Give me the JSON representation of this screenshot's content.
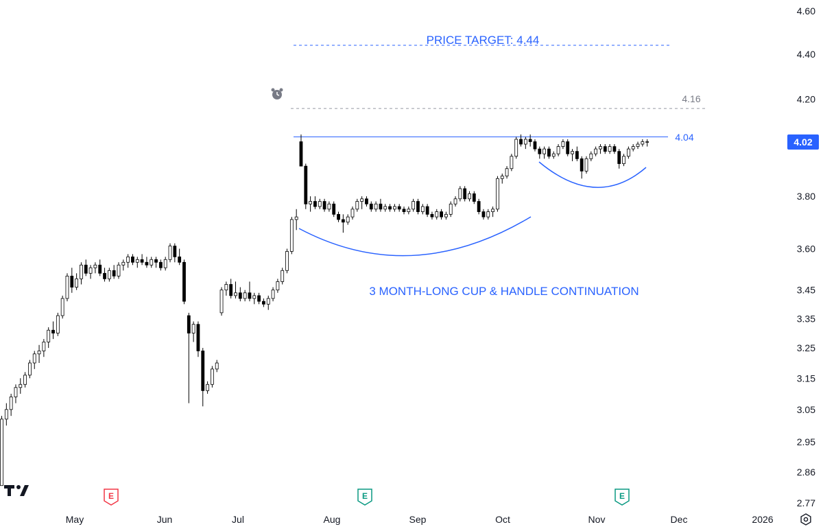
{
  "chart_data": {
    "type": "candlestick",
    "y_scale": "log",
    "ylim": [
      2.77,
      4.6
    ],
    "yticks": [
      "4.60",
      "4.40",
      "4.20",
      "4.02",
      "3.80",
      "3.60",
      "3.45",
      "3.35",
      "3.25",
      "3.15",
      "3.05",
      "2.95",
      "2.86",
      "2.77"
    ],
    "xticks": [
      "May",
      "Jun",
      "Jul",
      "Aug",
      "Sep",
      "Oct",
      "Nov",
      "Dec",
      "2026"
    ],
    "last_price": "4.02",
    "annotations": {
      "price_target_label": "PRICE TARGET: 4.44",
      "pattern_label": "3 MONTH-LONG CUP & HANDLE CONTINUATION",
      "resistance_label": "4.04",
      "level_416_label": "4.16"
    },
    "levels": [
      {
        "value": 4.44,
        "style": "dashed",
        "color": "#2962ff"
      },
      {
        "value": 4.16,
        "style": "dashed",
        "color": "#9598a1"
      },
      {
        "value": 4.04,
        "style": "solid",
        "color": "#2962ff"
      }
    ],
    "earnings_markers": [
      {
        "label": "E",
        "color": "#f23645",
        "month": "May"
      },
      {
        "label": "E",
        "color": "#089981",
        "month": "Aug"
      },
      {
        "label": "E",
        "color": "#089981",
        "month": "Nov"
      }
    ],
    "candles": [
      [
        2.82,
        3.03,
        2.82,
        3.02
      ],
      [
        3.02,
        3.07,
        3.0,
        3.05
      ],
      [
        3.05,
        3.1,
        3.03,
        3.09
      ],
      [
        3.09,
        3.13,
        3.07,
        3.12
      ],
      [
        3.12,
        3.15,
        3.1,
        3.13
      ],
      [
        3.13,
        3.17,
        3.12,
        3.16
      ],
      [
        3.16,
        3.21,
        3.15,
        3.2
      ],
      [
        3.2,
        3.24,
        3.18,
        3.23
      ],
      [
        3.23,
        3.26,
        3.2,
        3.24
      ],
      [
        3.24,
        3.28,
        3.22,
        3.27
      ],
      [
        3.27,
        3.32,
        3.25,
        3.31
      ],
      [
        3.31,
        3.34,
        3.28,
        3.3
      ],
      [
        3.3,
        3.37,
        3.29,
        3.36
      ],
      [
        3.36,
        3.43,
        3.35,
        3.42
      ],
      [
        3.42,
        3.51,
        3.41,
        3.5
      ],
      [
        3.5,
        3.53,
        3.44,
        3.46
      ],
      [
        3.46,
        3.51,
        3.45,
        3.49
      ],
      [
        3.49,
        3.55,
        3.47,
        3.54
      ],
      [
        3.54,
        3.56,
        3.5,
        3.51
      ],
      [
        3.51,
        3.54,
        3.49,
        3.53
      ],
      [
        3.53,
        3.55,
        3.51,
        3.54
      ],
      [
        3.54,
        3.56,
        3.5,
        3.51
      ],
      [
        3.51,
        3.53,
        3.48,
        3.49
      ],
      [
        3.49,
        3.53,
        3.48,
        3.52
      ],
      [
        3.52,
        3.54,
        3.49,
        3.5
      ],
      [
        3.5,
        3.55,
        3.49,
        3.54
      ],
      [
        3.54,
        3.56,
        3.52,
        3.55
      ],
      [
        3.55,
        3.58,
        3.53,
        3.57
      ],
      [
        3.57,
        3.58,
        3.54,
        3.55
      ],
      [
        3.55,
        3.57,
        3.53,
        3.56
      ],
      [
        3.56,
        3.58,
        3.54,
        3.55
      ],
      [
        3.55,
        3.57,
        3.53,
        3.54
      ],
      [
        3.54,
        3.57,
        3.53,
        3.56
      ],
      [
        3.56,
        3.57,
        3.53,
        3.55
      ],
      [
        3.55,
        3.56,
        3.52,
        3.53
      ],
      [
        3.53,
        3.57,
        3.52,
        3.56
      ],
      [
        3.56,
        3.62,
        3.55,
        3.61
      ],
      [
        3.61,
        3.62,
        3.55,
        3.57
      ],
      [
        3.57,
        3.6,
        3.54,
        3.55
      ],
      [
        3.55,
        3.56,
        3.4,
        3.41
      ],
      [
        3.36,
        3.37,
        3.07,
        3.3
      ],
      [
        3.3,
        3.34,
        3.27,
        3.33
      ],
      [
        3.33,
        3.34,
        3.22,
        3.24
      ],
      [
        3.24,
        3.25,
        3.06,
        3.11
      ],
      [
        3.11,
        3.14,
        3.1,
        3.13
      ],
      [
        3.13,
        3.19,
        3.12,
        3.18
      ],
      [
        3.18,
        3.21,
        3.17,
        3.2
      ],
      [
        3.37,
        3.46,
        3.36,
        3.45
      ],
      [
        3.45,
        3.48,
        3.43,
        3.47
      ],
      [
        3.47,
        3.49,
        3.42,
        3.43
      ],
      [
        3.43,
        3.48,
        3.42,
        3.44
      ],
      [
        3.44,
        3.46,
        3.41,
        3.42
      ],
      [
        3.42,
        3.45,
        3.41,
        3.44
      ],
      [
        3.44,
        3.48,
        3.41,
        3.42
      ],
      [
        3.42,
        3.44,
        3.4,
        3.43
      ],
      [
        3.43,
        3.44,
        3.4,
        3.41
      ],
      [
        3.41,
        3.42,
        3.39,
        3.4
      ],
      [
        3.4,
        3.43,
        3.38,
        3.42
      ],
      [
        3.42,
        3.46,
        3.41,
        3.45
      ],
      [
        3.45,
        3.49,
        3.44,
        3.48
      ],
      [
        3.48,
        3.53,
        3.47,
        3.52
      ],
      [
        3.52,
        3.6,
        3.51,
        3.59
      ],
      [
        3.59,
        3.72,
        3.58,
        3.71
      ],
      [
        3.71,
        3.75,
        3.67,
        3.72
      ],
      [
        4.02,
        4.05,
        3.92,
        3.92
      ],
      [
        3.92,
        3.93,
        3.75,
        3.77
      ],
      [
        3.77,
        3.8,
        3.74,
        3.78
      ],
      [
        3.78,
        3.8,
        3.75,
        3.76
      ],
      [
        3.76,
        3.79,
        3.75,
        3.78
      ],
      [
        3.78,
        3.79,
        3.74,
        3.75
      ],
      [
        3.75,
        3.78,
        3.74,
        3.77
      ],
      [
        3.77,
        3.78,
        3.72,
        3.73
      ],
      [
        3.73,
        3.74,
        3.7,
        3.71
      ],
      [
        3.71,
        3.73,
        3.66,
        3.7
      ],
      [
        3.7,
        3.73,
        3.69,
        3.72
      ],
      [
        3.72,
        3.76,
        3.71,
        3.75
      ],
      [
        3.75,
        3.79,
        3.74,
        3.78
      ],
      [
        3.78,
        3.8,
        3.75,
        3.79
      ],
      [
        3.79,
        3.8,
        3.76,
        3.77
      ],
      [
        3.77,
        3.78,
        3.74,
        3.75
      ],
      [
        3.75,
        3.78,
        3.74,
        3.77
      ],
      [
        3.77,
        3.79,
        3.74,
        3.75
      ],
      [
        3.75,
        3.77,
        3.74,
        3.76
      ],
      [
        3.76,
        3.77,
        3.74,
        3.75
      ],
      [
        3.75,
        3.77,
        3.74,
        3.76
      ],
      [
        3.76,
        3.77,
        3.74,
        3.75
      ],
      [
        3.75,
        3.76,
        3.73,
        3.74
      ],
      [
        3.74,
        3.76,
        3.73,
        3.75
      ],
      [
        3.75,
        3.79,
        3.74,
        3.78
      ],
      [
        3.78,
        3.79,
        3.73,
        3.74
      ],
      [
        3.74,
        3.77,
        3.73,
        3.76
      ],
      [
        3.76,
        3.77,
        3.72,
        3.73
      ],
      [
        3.73,
        3.74,
        3.71,
        3.72
      ],
      [
        3.72,
        3.75,
        3.71,
        3.74
      ],
      [
        3.74,
        3.75,
        3.71,
        3.72
      ],
      [
        3.72,
        3.74,
        3.71,
        3.73
      ],
      [
        3.73,
        3.78,
        3.72,
        3.77
      ],
      [
        3.77,
        3.8,
        3.76,
        3.79
      ],
      [
        3.79,
        3.84,
        3.78,
        3.83
      ],
      [
        3.83,
        3.84,
        3.78,
        3.79
      ],
      [
        3.79,
        3.82,
        3.78,
        3.81
      ],
      [
        3.81,
        3.82,
        3.77,
        3.78
      ],
      [
        3.78,
        3.79,
        3.73,
        3.74
      ],
      [
        3.74,
        3.75,
        3.71,
        3.72
      ],
      [
        3.72,
        3.75,
        3.71,
        3.74
      ],
      [
        3.74,
        3.76,
        3.72,
        3.75
      ],
      [
        3.75,
        3.88,
        3.74,
        3.87
      ],
      [
        3.87,
        3.89,
        3.85,
        3.88
      ],
      [
        3.88,
        3.92,
        3.87,
        3.91
      ],
      [
        3.91,
        3.97,
        3.9,
        3.96
      ],
      [
        3.96,
        4.04,
        3.95,
        4.03
      ],
      [
        4.03,
        4.05,
        4.0,
        4.01
      ],
      [
        4.01,
        4.04,
        3.99,
        4.03
      ],
      [
        4.03,
        4.05,
        4.0,
        4.02
      ],
      [
        4.02,
        4.03,
        3.98,
        3.99
      ],
      [
        3.99,
        4.0,
        3.95,
        3.97
      ],
      [
        3.97,
        4.0,
        3.95,
        3.99
      ],
      [
        3.99,
        4.0,
        3.95,
        3.96
      ],
      [
        3.96,
        3.98,
        3.95,
        3.97
      ],
      [
        3.97,
        4.01,
        3.96,
        4.0
      ],
      [
        4.0,
        4.03,
        3.99,
        4.02
      ],
      [
        4.02,
        4.03,
        3.96,
        3.97
      ],
      [
        3.97,
        3.99,
        3.94,
        3.98
      ],
      [
        3.98,
        4.0,
        3.94,
        3.95
      ],
      [
        3.95,
        3.96,
        3.87,
        3.9
      ],
      [
        3.9,
        3.96,
        3.89,
        3.95
      ],
      [
        3.95,
        3.98,
        3.94,
        3.97
      ],
      [
        3.97,
        4.0,
        3.96,
        3.99
      ],
      [
        3.99,
        4.01,
        3.97,
        4.0
      ],
      [
        4.0,
        4.01,
        3.97,
        3.98
      ],
      [
        3.98,
        4.01,
        3.97,
        4.0
      ],
      [
        4.0,
        4.01,
        3.97,
        3.98
      ],
      [
        3.98,
        3.99,
        3.91,
        3.93
      ],
      [
        3.93,
        3.97,
        3.92,
        3.96
      ],
      [
        3.96,
        4.0,
        3.95,
        3.99
      ],
      [
        3.99,
        4.01,
        3.98,
        4.0
      ],
      [
        4.0,
        4.02,
        3.99,
        4.01
      ],
      [
        4.01,
        4.03,
        4.0,
        4.02
      ],
      [
        4.02,
        4.03,
        4.0,
        4.02
      ]
    ]
  }
}
